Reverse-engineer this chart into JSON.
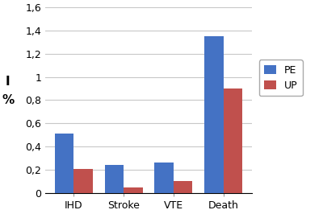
{
  "categories": [
    "IHD",
    "Stroke",
    "VTE",
    "Death"
  ],
  "PE_values": [
    0.51,
    0.24,
    0.26,
    1.35
  ],
  "UP_values": [
    0.21,
    0.05,
    0.1,
    0.9
  ],
  "PE_color": "#4472C4",
  "UP_color": "#C0504D",
  "ylabel_line1": "I",
  "ylabel_line2": "%",
  "ylim": [
    0,
    1.6
  ],
  "yticks": [
    0,
    0.2,
    0.4,
    0.6,
    0.8,
    1.0,
    1.2,
    1.4,
    1.6
  ],
  "ytick_labels": [
    "0",
    "0,2",
    "0,4",
    "0,6",
    "0,8",
    "1",
    "1,2",
    "1,4",
    "1,6"
  ],
  "legend_labels": [
    "PE",
    "UP"
  ],
  "bar_width": 0.38,
  "background_color": "#FFFFFF",
  "grid_color": "#C8C8C8"
}
